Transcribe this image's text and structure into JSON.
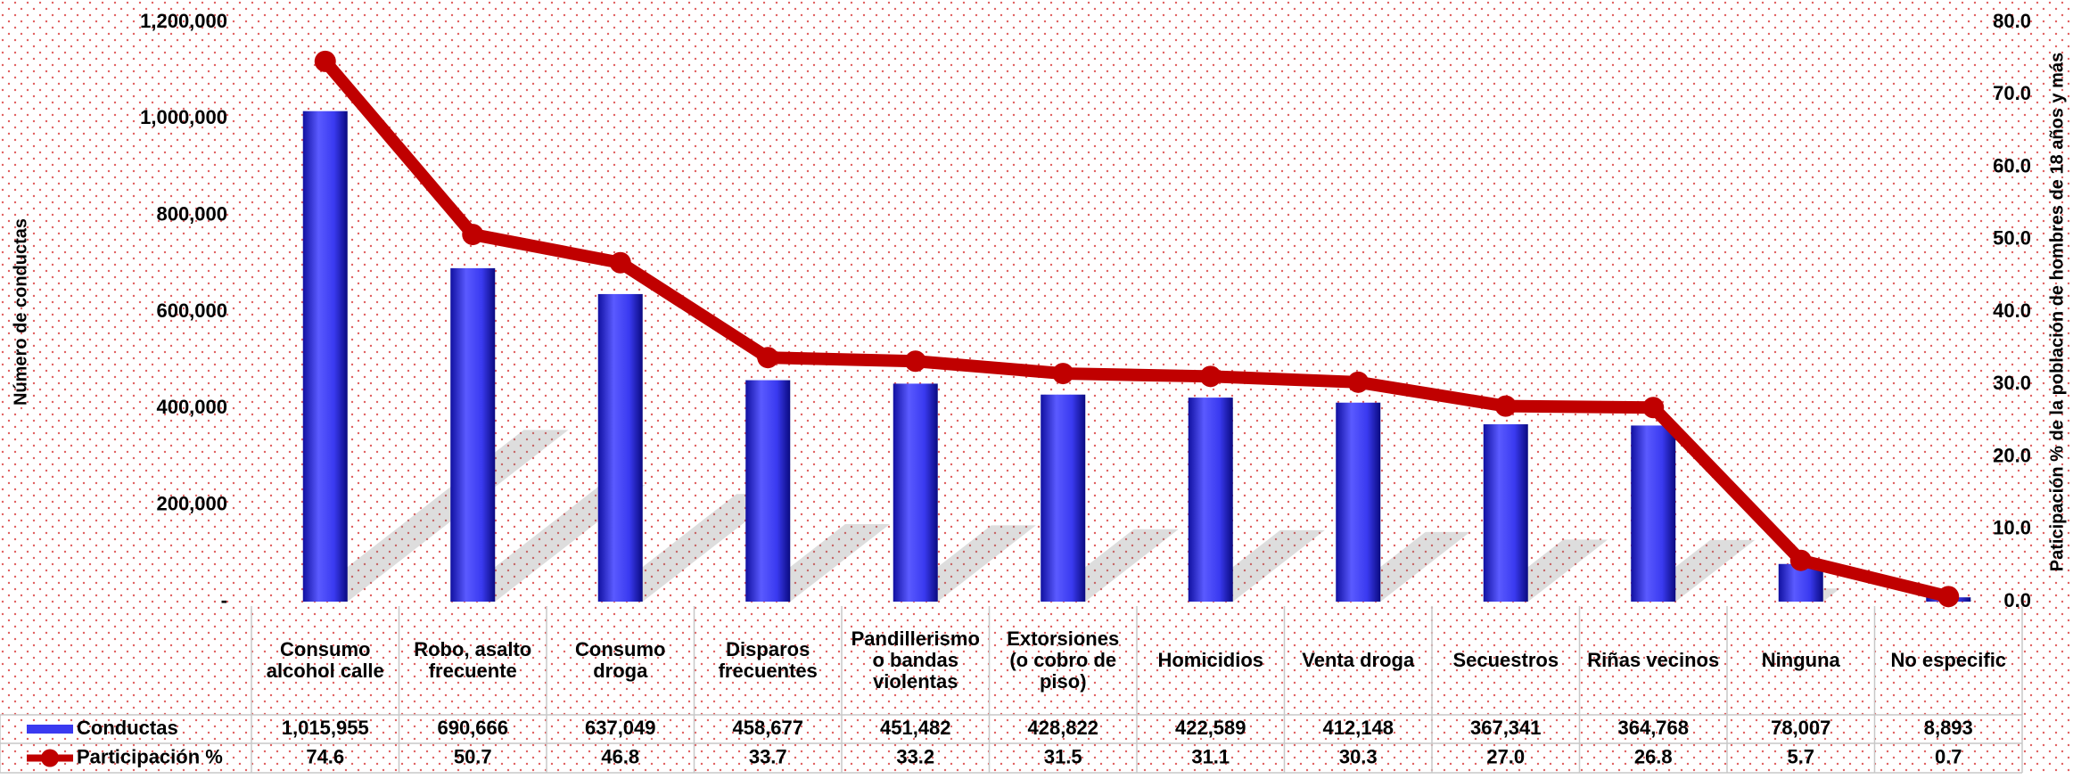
{
  "chart_data": {
    "type": "bar-line",
    "categories": [
      "Consumo alcohol calle",
      "Robo, asalto frecuente",
      "Consumo droga",
      "Disparos frecuentes",
      "Pandillerismo o bandas violentas",
      "Extorsiones (o cobro de piso)",
      "Homicidios",
      "Venta droga",
      "Secuestros",
      "Riñas vecinos",
      "Ninguna",
      "No especific"
    ],
    "series": [
      {
        "name": "Conductas",
        "type": "bar",
        "color": "#3a3af0",
        "values": [
          1015955,
          690666,
          637049,
          458677,
          451482,
          428822,
          422589,
          412148,
          367341,
          364768,
          78007,
          8893
        ],
        "value_labels": [
          "1,015,955",
          "690,666",
          "637,049",
          "458,677",
          "451,482",
          "428,822",
          "422,589",
          "412,148",
          "367,341",
          "364,768",
          "78,007",
          "8,893"
        ]
      },
      {
        "name": "Participación %",
        "type": "line",
        "axis": "y2",
        "color": "#c00000",
        "values": [
          74.6,
          50.7,
          46.8,
          33.7,
          33.2,
          31.5,
          31.1,
          30.3,
          27.0,
          26.8,
          5.7,
          0.7
        ],
        "value_labels": [
          "74.6",
          "50.7",
          "46.8",
          "33.7",
          "33.2",
          "31.5",
          "31.1",
          "30.3",
          "27.0",
          "26.8",
          "5.7",
          "0.7"
        ]
      }
    ],
    "ylabel": "Número de conductas",
    "y2label": "Paticipación % de la población de hombres de 18 años y más",
    "ylim": [
      0,
      1200000
    ],
    "yticks": [
      {
        "value": 0,
        "label": "-"
      },
      {
        "value": 200000,
        "label": "200,000"
      },
      {
        "value": 400000,
        "label": "400,000"
      },
      {
        "value": 600000,
        "label": "600,000"
      },
      {
        "value": 800000,
        "label": "800,000"
      },
      {
        "value": 1000000,
        "label": "1,000,000"
      },
      {
        "value": 1200000,
        "label": "1,200,000"
      }
    ],
    "y2lim": [
      0,
      80
    ],
    "y2ticks": [
      {
        "value": 0,
        "label": "0.0"
      },
      {
        "value": 10,
        "label": "10.0"
      },
      {
        "value": 20,
        "label": "20.0"
      },
      {
        "value": 30,
        "label": "30.0"
      },
      {
        "value": 40,
        "label": "40.0"
      },
      {
        "value": 50,
        "label": "50.0"
      },
      {
        "value": 60,
        "label": "60.0"
      },
      {
        "value": 70,
        "label": "70.0"
      },
      {
        "value": 80,
        "label": "80.0"
      }
    ]
  }
}
